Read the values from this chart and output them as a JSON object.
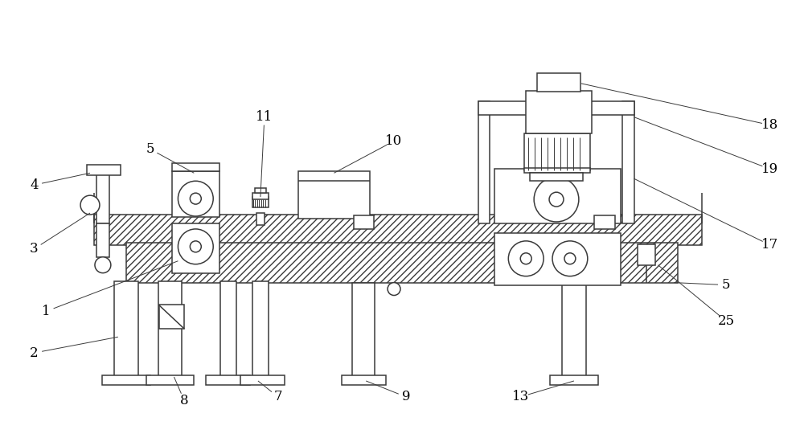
{
  "bg_color": "#ffffff",
  "line_color": "#3a3a3a",
  "label_color": "#000000",
  "label_fontsize": 12,
  "leader_linewidth": 0.7,
  "draw_linewidth": 1.1
}
